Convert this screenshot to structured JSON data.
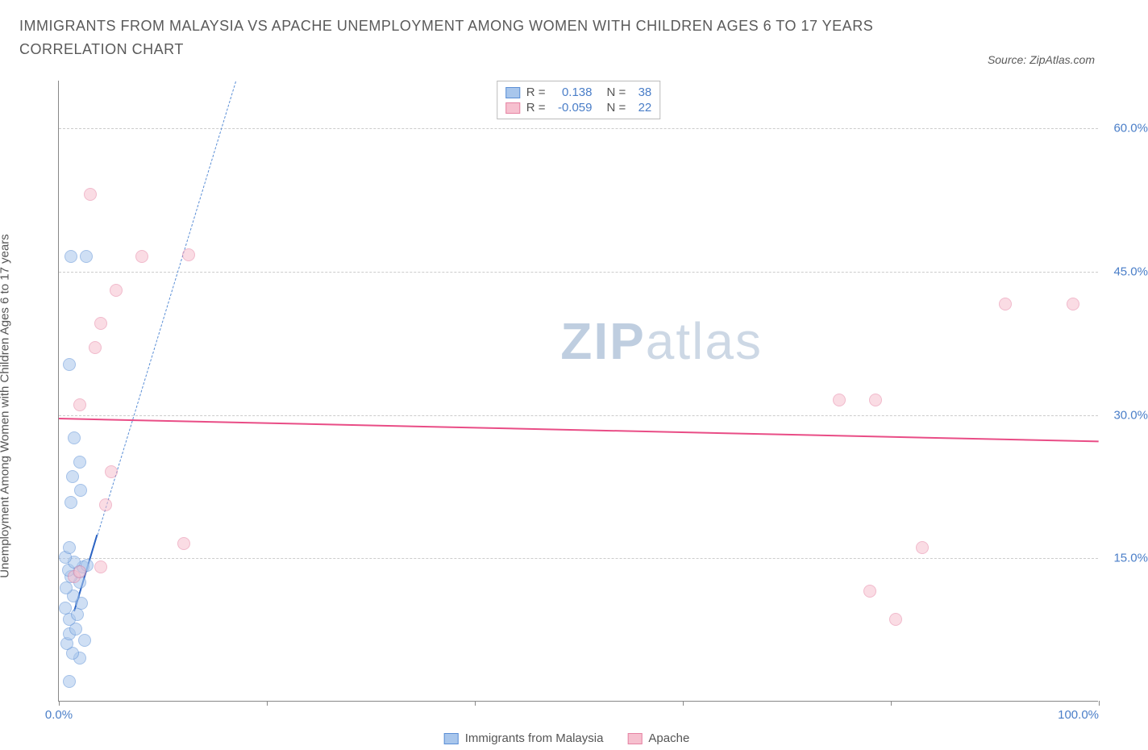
{
  "title": "IMMIGRANTS FROM MALAYSIA VS APACHE UNEMPLOYMENT AMONG WOMEN WITH CHILDREN AGES 6 TO 17 YEARS CORRELATION CHART",
  "source": "Source: ZipAtlas.com",
  "watermark_a": "ZIP",
  "watermark_b": "atlas",
  "y_axis_label": "Unemployment Among Women with Children Ages 6 to 17 years",
  "chart": {
    "type": "scatter",
    "xlim": [
      0,
      100
    ],
    "ylim": [
      0,
      65
    ],
    "x_ticks": [
      0,
      20,
      40,
      60,
      80,
      100
    ],
    "x_tick_labels": {
      "0": "0.0%",
      "100": "100.0%"
    },
    "y_ticks": [
      15,
      30,
      45,
      60
    ],
    "y_tick_labels": {
      "15": "15.0%",
      "30": "30.0%",
      "45": "45.0%",
      "60": "60.0%"
    },
    "grid_color": "#cccccc",
    "axis_color": "#888888",
    "background_color": "#ffffff",
    "label_color": "#4a7ec8",
    "series": [
      {
        "name": "Immigrants from Malaysia",
        "fill": "#a8c6ec",
        "stroke": "#5b8fd6",
        "fill_opacity": 0.55,
        "marker_radius": 8,
        "trend": {
          "type": "solid",
          "color": "#2b63c3",
          "width": 2,
          "x1": 1.5,
          "y1": 9.5,
          "x2": 3.7,
          "y2": 17.5
        },
        "trend_ext": {
          "type": "dashed",
          "color": "#5b8fd6",
          "width": 1,
          "x1": 3.7,
          "y1": 17.5,
          "x2": 17,
          "y2": 65
        },
        "points": [
          [
            1.0,
            2.0
          ],
          [
            2.0,
            4.5
          ],
          [
            1.3,
            5.0
          ],
          [
            0.8,
            6.0
          ],
          [
            2.5,
            6.3
          ],
          [
            1.0,
            7.0
          ],
          [
            1.6,
            7.5
          ],
          [
            1.0,
            8.5
          ],
          [
            1.8,
            9.0
          ],
          [
            0.6,
            9.7
          ],
          [
            2.2,
            10.2
          ],
          [
            1.4,
            11.0
          ],
          [
            0.7,
            11.8
          ],
          [
            2.0,
            12.4
          ],
          [
            1.2,
            13.0
          ],
          [
            1.9,
            13.5
          ],
          [
            0.9,
            13.7
          ],
          [
            2.3,
            14.0
          ],
          [
            1.5,
            14.5
          ],
          [
            2.7,
            14.2
          ],
          [
            0.6,
            15.0
          ],
          [
            1.0,
            16.0
          ],
          [
            1.2,
            20.8
          ],
          [
            2.1,
            22.0
          ],
          [
            1.3,
            23.5
          ],
          [
            2.0,
            25.0
          ],
          [
            1.5,
            27.5
          ],
          [
            1.0,
            35.2
          ],
          [
            2.6,
            46.5
          ],
          [
            1.2,
            46.5
          ]
        ]
      },
      {
        "name": "Apache",
        "fill": "#f6c0cf",
        "stroke": "#e683a3",
        "fill_opacity": 0.55,
        "marker_radius": 8,
        "trend": {
          "type": "solid",
          "color": "#e94d86",
          "width": 2.5,
          "x1": 0,
          "y1": 29.7,
          "x2": 100,
          "y2": 27.3
        },
        "points": [
          [
            1.5,
            13.0
          ],
          [
            2.0,
            13.5
          ],
          [
            4.0,
            14.0
          ],
          [
            12.0,
            16.5
          ],
          [
            4.5,
            20.5
          ],
          [
            5.0,
            24.0
          ],
          [
            2.0,
            31.0
          ],
          [
            3.5,
            37.0
          ],
          [
            4.0,
            39.5
          ],
          [
            5.5,
            43.0
          ],
          [
            8.0,
            46.5
          ],
          [
            12.5,
            46.7
          ],
          [
            3.0,
            53.0
          ],
          [
            80.5,
            8.5
          ],
          [
            78.0,
            11.5
          ],
          [
            83.0,
            16.0
          ],
          [
            75.0,
            31.5
          ],
          [
            78.5,
            31.5
          ],
          [
            91.0,
            41.5
          ],
          [
            97.5,
            41.5
          ]
        ]
      }
    ],
    "legend_box": {
      "rows": [
        {
          "swatch_fill": "#a8c6ec",
          "swatch_stroke": "#5b8fd6",
          "r_label": "R =",
          "r": "0.138",
          "n_label": "N =",
          "n": "38"
        },
        {
          "swatch_fill": "#f6c0cf",
          "swatch_stroke": "#e683a3",
          "r_label": "R =",
          "r": "-0.059",
          "n_label": "N =",
          "n": "22"
        }
      ]
    },
    "bottom_legend": [
      {
        "swatch_fill": "#a8c6ec",
        "swatch_stroke": "#5b8fd6",
        "label": "Immigrants from Malaysia"
      },
      {
        "swatch_fill": "#f6c0cf",
        "swatch_stroke": "#e683a3",
        "label": "Apache"
      }
    ]
  }
}
